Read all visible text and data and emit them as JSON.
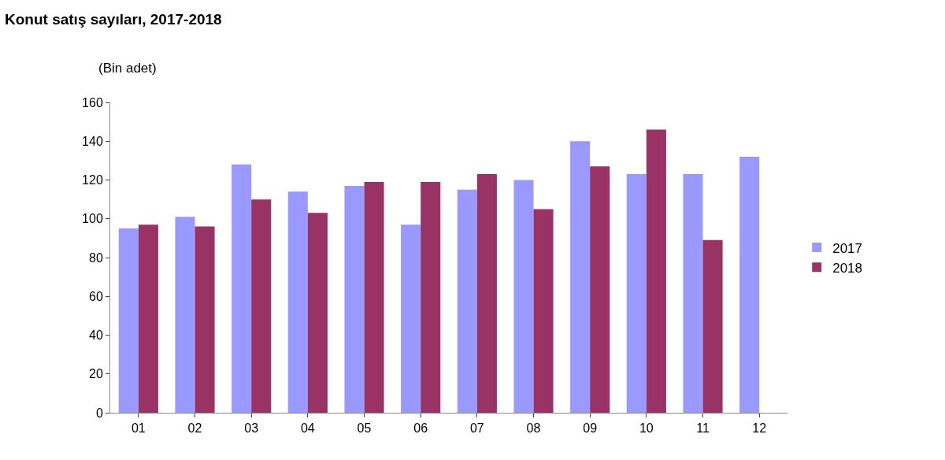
{
  "chart_data": {
    "type": "bar",
    "title": "Konut satış sayıları, 2017-2018",
    "ylabel": "(Bin adet)",
    "categories": [
      "01",
      "02",
      "03",
      "04",
      "05",
      "06",
      "07",
      "08",
      "09",
      "10",
      "11",
      "12"
    ],
    "series": [
      {
        "name": "2017",
        "color": "#9999ff",
        "values": [
          95,
          101,
          128,
          114,
          117,
          97,
          115,
          120,
          140,
          123,
          123,
          132
        ]
      },
      {
        "name": "2018",
        "color": "#993366",
        "values": [
          97,
          96,
          110,
          103,
          119,
          119,
          123,
          105,
          127,
          146,
          89,
          null
        ]
      }
    ],
    "ylim": [
      0,
      160
    ],
    "yticks": [
      0,
      20,
      40,
      60,
      80,
      100,
      120,
      140,
      160
    ],
    "legend": "right"
  }
}
